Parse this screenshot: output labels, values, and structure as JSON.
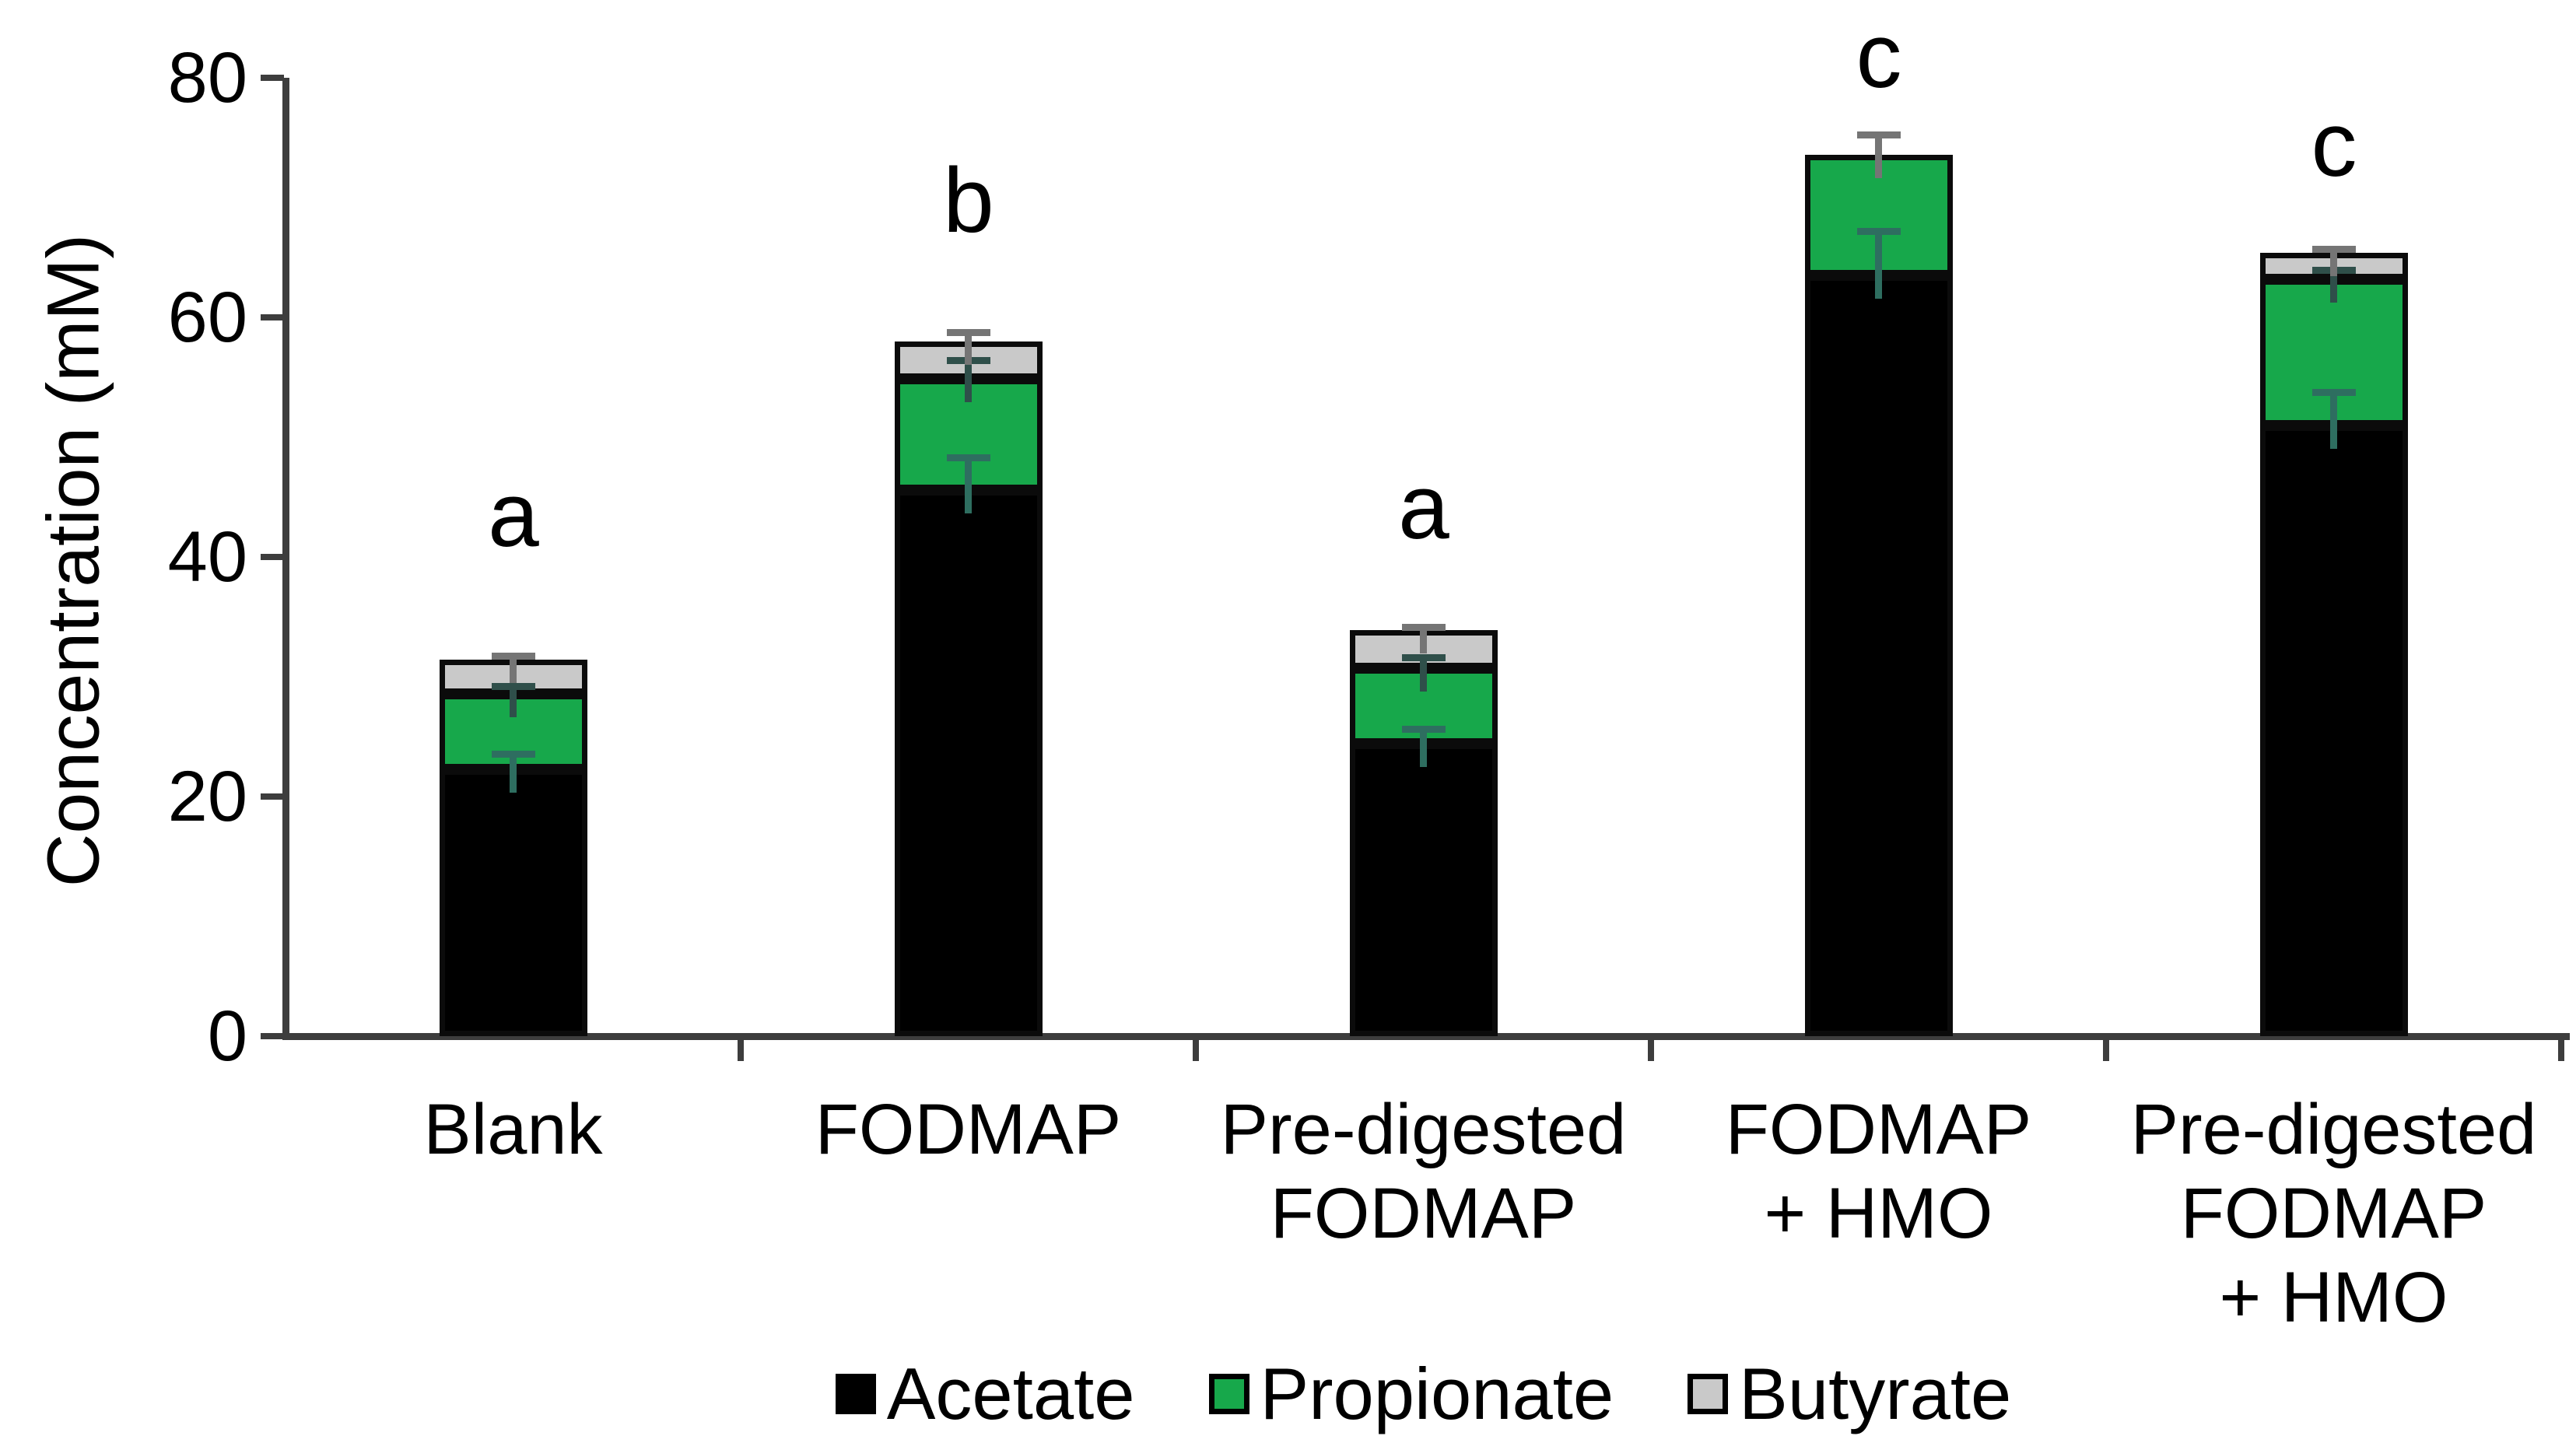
{
  "chart_data": {
    "type": "bar",
    "stacked": true,
    "title": "",
    "ylabel": "Concentration (mM)",
    "xlabel": "",
    "ylim": [
      0,
      80
    ],
    "yticks": [
      "0",
      "20",
      "40",
      "60",
      "80"
    ],
    "grid": false,
    "legend_position": "bottom",
    "categories": [
      "Blank",
      "FODMAP",
      "Pre-digested\nFODMAP",
      "FODMAP\n+ HMO",
      "Pre-digested\nFODMAP\n+ HMO"
    ],
    "sig_letters": [
      "a",
      "b",
      "a",
      "c",
      "c"
    ],
    "series": [
      {
        "name": "Acetate",
        "color": "#000000",
        "error_color": "#2E6E60",
        "values": [
          22.3,
          45.6,
          24.4,
          63.5,
          51.0
        ],
        "upper_errors": [
          1.5,
          3.0,
          1.5,
          4.0,
          3.0
        ]
      },
      {
        "name": "Propionate",
        "color": "#17A84B",
        "error_color": "#2F4F4A",
        "values": [
          6.3,
          9.3,
          6.3,
          10.1,
          12.2
        ],
        "upper_errors": [
          0.9,
          1.8,
          1.2,
          0,
          1.0
        ]
      },
      {
        "name": "Butyrate",
        "color": "#C9C9C9",
        "error_color": "#757575",
        "values": [
          2.8,
          3.1,
          3.2,
          0,
          2.2
        ],
        "upper_errors": [
          0.6,
          1.0,
          0.5,
          1.9,
          0.6
        ]
      }
    ],
    "stack_totals": [
      31.4,
      58.0,
      33.9,
      73.6,
      65.4
    ]
  }
}
